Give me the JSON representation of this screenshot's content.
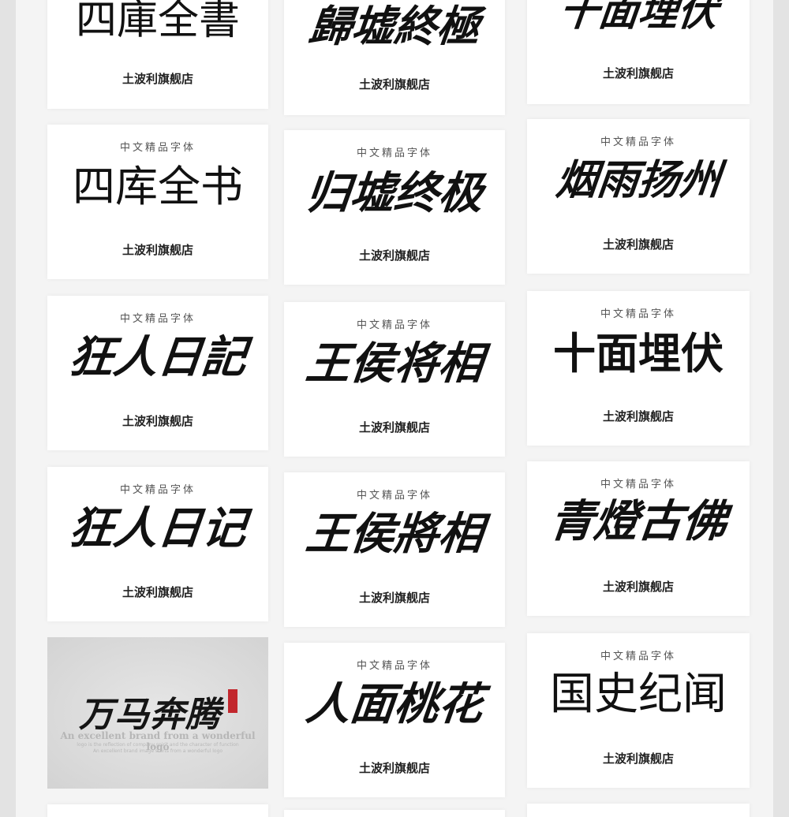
{
  "tag_text": "中文精品字体",
  "shop_text": "土波利旗舰店",
  "cards": {
    "c0": {
      "title": "四庫全書"
    },
    "c1": {
      "title": "歸墟終極"
    },
    "c2": {
      "title": "十面埋伏"
    },
    "c3": {
      "title": "四库全书"
    },
    "c4": {
      "title": "归墟终极"
    },
    "c5": {
      "title": "烟雨扬州"
    },
    "c6": {
      "title": "狂人日記"
    },
    "c7": {
      "title": "王侯将相"
    },
    "c8": {
      "title": "十面埋伏"
    },
    "c9": {
      "title": "狂人日记"
    },
    "c10": {
      "title": "王侯將相"
    },
    "c11": {
      "title": "青燈古佛"
    },
    "c13": {
      "title": "人面桃花"
    },
    "c14": {
      "title": "国史纪闻"
    }
  },
  "promo": {
    "title": "万马奔腾",
    "line1": "An excellent brand from a wonderful logo",
    "line2": "logo is the reflection of company spirit and the character of function",
    "line3": "An excellent brand image starts from a wonderful logo",
    "seal_color": "#c2272d"
  }
}
